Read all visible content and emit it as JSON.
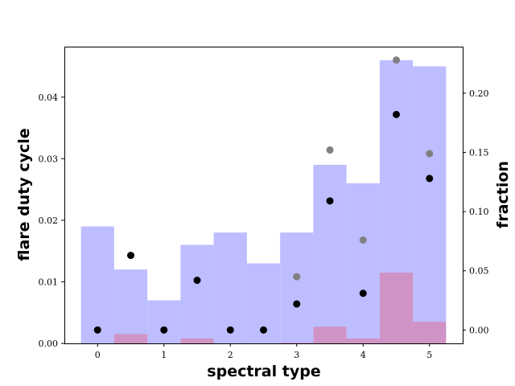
{
  "chart_data": {
    "type": "bar",
    "xlabel": "spectral type",
    "ylabel_left": "flare duty cycle",
    "ylabel_right": "fraction",
    "x_ticks": [
      0,
      1,
      2,
      3,
      4,
      5
    ],
    "x_tick_labels": [
      "0",
      "1",
      "2",
      "3",
      "4",
      "5"
    ],
    "xlim": [
      -0.5,
      5.5
    ],
    "y_left_ticks": [
      0.0,
      0.01,
      0.02,
      0.03,
      0.04
    ],
    "y_left_tick_labels": [
      "0.00",
      "0.01",
      "0.02",
      "0.03",
      "0.04"
    ],
    "ylim_left": [
      0.0,
      0.0482
    ],
    "y_right_ticks": [
      0.0,
      0.05,
      0.1,
      0.15,
      0.2
    ],
    "y_right_tick_labels": [
      "0.00",
      "0.05",
      "0.10",
      "0.15",
      "0.20"
    ],
    "ylim_right": [
      -0.0113,
      0.2393
    ],
    "bin_centers": [
      0,
      0.5,
      1,
      1.5,
      2,
      2.5,
      3,
      3.5,
      4,
      4.5,
      5
    ],
    "bin_width": 0.5,
    "series": [
      {
        "kind": "bar",
        "axis": "left",
        "color": "#bdbdff",
        "values": [
          0.019,
          0.012,
          0.007,
          0.016,
          0.018,
          0.013,
          0.018,
          0.029,
          0.026,
          0.046,
          0.045
        ]
      },
      {
        "kind": "bar",
        "axis": "left",
        "color": "#cf94c5",
        "values": [
          0.0,
          0.0015,
          0.0,
          0.0008,
          0.0,
          0.0,
          0.0001,
          0.0027,
          0.0008,
          0.0115,
          0.0035
        ]
      },
      {
        "kind": "scatter",
        "axis": "right",
        "color": "#000000",
        "x": [
          0,
          0.5,
          1,
          1.5,
          2,
          2.5,
          3,
          3.5,
          4,
          4.5,
          5
        ],
        "values": [
          0.0,
          0.063,
          0.0,
          0.042,
          0.0,
          0.0,
          0.022,
          0.109,
          0.031,
          0.182,
          0.128
        ]
      },
      {
        "kind": "scatter",
        "axis": "right",
        "color": "#808080",
        "x": [
          3,
          3.5,
          4,
          4.5,
          5
        ],
        "values": [
          0.045,
          0.152,
          0.076,
          0.228,
          0.149
        ]
      }
    ]
  }
}
